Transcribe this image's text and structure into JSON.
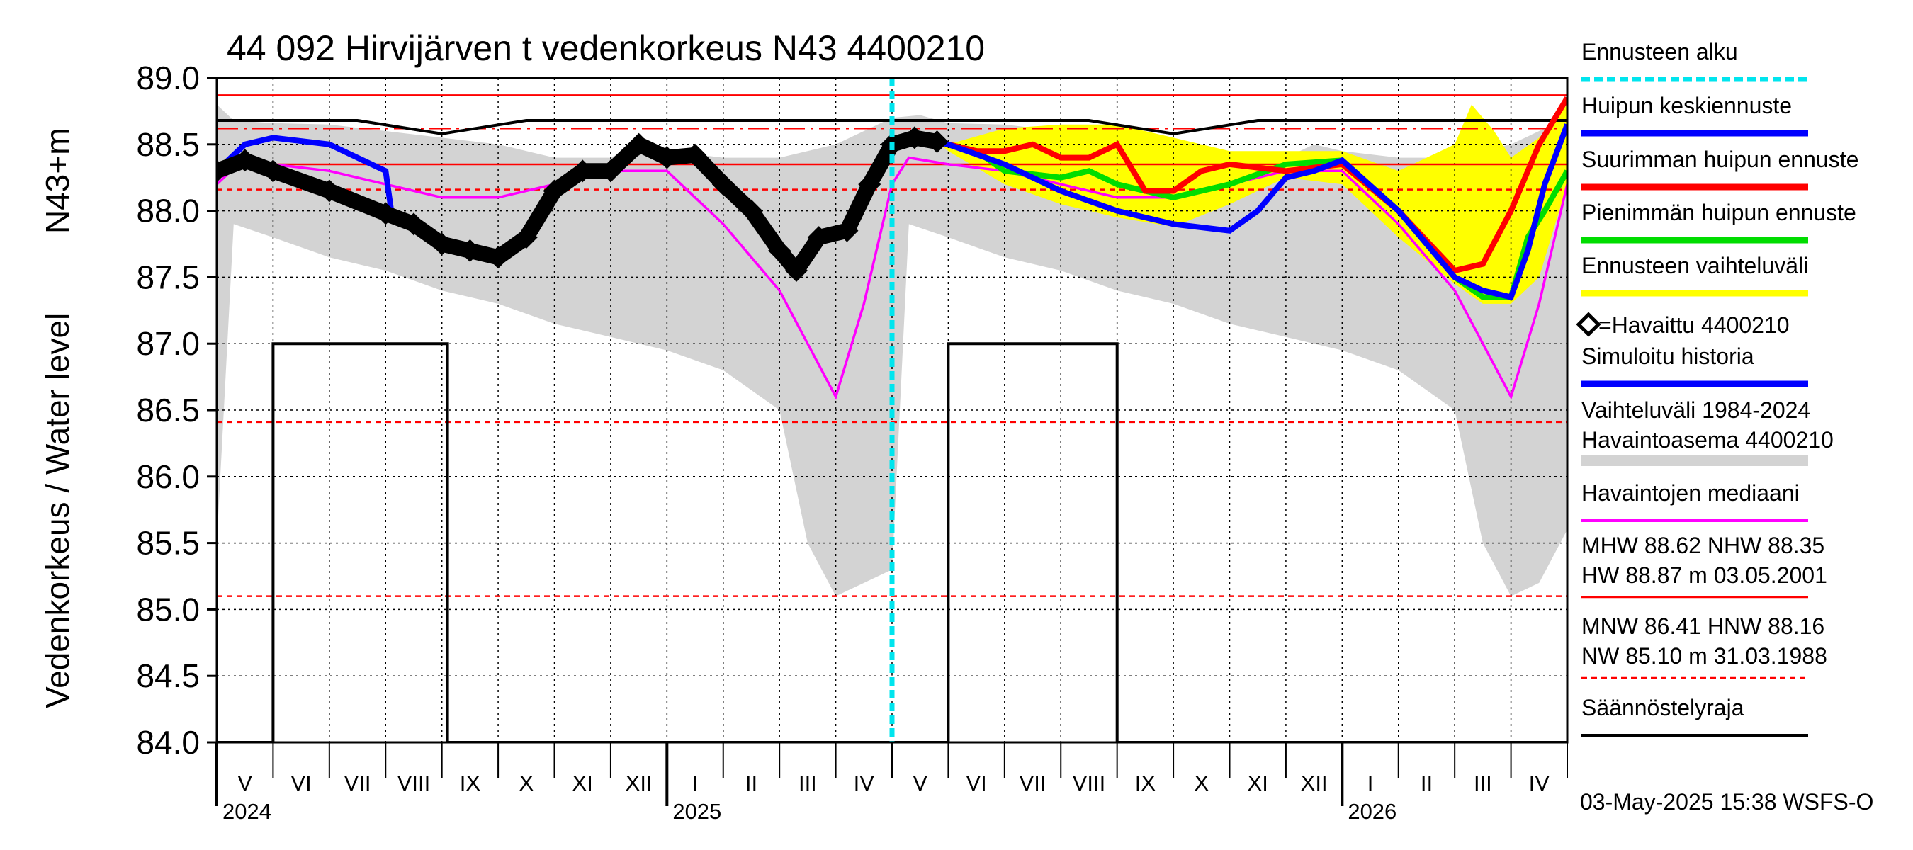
{
  "chart_data": {
    "type": "line",
    "title": "44 092 Hirvijärven t vedenkorkeus N43 4400210",
    "ylabel_outer": "Vedenkorkeus / Water level",
    "ylabel_inner": "N43+m",
    "ylim": [
      84.0,
      89.0
    ],
    "yticks": [
      "84.0",
      "84.5",
      "85.0",
      "85.5",
      "86.0",
      "86.5",
      "87.0",
      "87.5",
      "88.0",
      "88.5",
      "89.0"
    ],
    "months": [
      "V",
      "VI",
      "VII",
      "VIII",
      "IX",
      "X",
      "XI",
      "XII",
      "I",
      "II",
      "III",
      "IV",
      "V",
      "VI",
      "VII",
      "VIII",
      "IX",
      "X",
      "XI",
      "XII",
      "I",
      "II",
      "III",
      "IV"
    ],
    "years": [
      {
        "label": "2024",
        "month_index": 0
      },
      {
        "label": "2025",
        "month_index": 8
      },
      {
        "label": "2026",
        "month_index": 20
      }
    ],
    "forecast_start_month": 12.0,
    "reference_levels": {
      "HW": 88.87,
      "MHW": 88.62,
      "NHW": 88.35,
      "HNW": 88.16,
      "MNW": 86.41,
      "NW": 85.1
    },
    "regulation_limit_upper": [
      [
        0,
        88.68
      ],
      [
        2.5,
        88.68
      ],
      [
        4,
        88.58
      ],
      [
        5.5,
        88.68
      ],
      [
        12,
        88.68
      ],
      [
        15.5,
        88.68
      ],
      [
        17,
        88.58
      ],
      [
        18.5,
        88.68
      ],
      [
        24,
        88.68
      ]
    ],
    "regulation_limit_lower": [
      [
        0,
        84.0
      ],
      [
        1,
        84.0
      ],
      [
        1,
        87.0
      ],
      [
        4.1,
        87.0
      ],
      [
        4.1,
        84.0
      ],
      [
        13,
        84.0
      ],
      [
        13,
        87.0
      ],
      [
        16,
        87.0
      ],
      [
        16,
        84.0
      ],
      [
        24,
        84.0
      ]
    ],
    "variation_range_1984_2024_upper": [
      [
        0,
        88.8
      ],
      [
        0.3,
        88.68
      ],
      [
        1,
        88.66
      ],
      [
        2,
        88.65
      ],
      [
        3,
        88.6
      ],
      [
        4,
        88.55
      ],
      [
        5,
        88.5
      ],
      [
        6,
        88.4
      ],
      [
        7,
        88.4
      ],
      [
        7.5,
        88.5
      ],
      [
        8,
        88.45
      ],
      [
        9,
        88.4
      ],
      [
        10,
        88.4
      ],
      [
        11,
        88.5
      ],
      [
        11.5,
        88.6
      ],
      [
        12,
        88.7
      ],
      [
        12.5,
        88.72
      ],
      [
        13,
        88.66
      ],
      [
        14,
        88.65
      ],
      [
        15,
        88.6
      ],
      [
        16,
        88.55
      ],
      [
        17,
        88.5
      ],
      [
        18,
        88.4
      ],
      [
        19,
        88.4
      ],
      [
        19.5,
        88.5
      ],
      [
        20,
        88.45
      ],
      [
        21,
        88.4
      ],
      [
        22,
        88.4
      ],
      [
        23,
        88.5
      ],
      [
        23.5,
        88.6
      ],
      [
        24,
        88.7
      ]
    ],
    "variation_range_1984_2024_lower": [
      [
        0,
        85.5
      ],
      [
        0.3,
        87.9
      ],
      [
        1,
        87.8
      ],
      [
        2,
        87.65
      ],
      [
        3,
        87.55
      ],
      [
        4,
        87.4
      ],
      [
        5,
        87.3
      ],
      [
        6,
        87.15
      ],
      [
        7,
        87.05
      ],
      [
        8,
        86.95
      ],
      [
        9,
        86.8
      ],
      [
        10,
        86.5
      ],
      [
        10.5,
        85.5
      ],
      [
        11,
        85.1
      ],
      [
        11.5,
        85.2
      ],
      [
        12,
        85.3
      ],
      [
        12.3,
        87.9
      ],
      [
        13,
        87.8
      ],
      [
        14,
        87.65
      ],
      [
        15,
        87.55
      ],
      [
        16,
        87.4
      ],
      [
        17,
        87.3
      ],
      [
        18,
        87.15
      ],
      [
        19,
        87.05
      ],
      [
        20,
        86.95
      ],
      [
        21,
        86.8
      ],
      [
        22,
        86.5
      ],
      [
        22.5,
        85.5
      ],
      [
        23,
        85.1
      ],
      [
        23.5,
        85.2
      ],
      [
        24,
        85.6
      ]
    ],
    "observed_median": [
      [
        0,
        88.2
      ],
      [
        0.5,
        88.4
      ],
      [
        1,
        88.35
      ],
      [
        2,
        88.3
      ],
      [
        3,
        88.2
      ],
      [
        4,
        88.1
      ],
      [
        5,
        88.1
      ],
      [
        6,
        88.2
      ],
      [
        7,
        88.3
      ],
      [
        8,
        88.3
      ],
      [
        9,
        87.9
      ],
      [
        10,
        87.4
      ],
      [
        10.5,
        87.0
      ],
      [
        11,
        86.6
      ],
      [
        11.5,
        87.3
      ],
      [
        12,
        88.2
      ],
      [
        12.3,
        88.4
      ],
      [
        13,
        88.35
      ],
      [
        14,
        88.3
      ],
      [
        15,
        88.2
      ],
      [
        16,
        88.1
      ],
      [
        17,
        88.1
      ],
      [
        18,
        88.2
      ],
      [
        19,
        88.3
      ],
      [
        20,
        88.3
      ],
      [
        21,
        87.9
      ],
      [
        22,
        87.4
      ],
      [
        22.5,
        87.0
      ],
      [
        23,
        86.6
      ],
      [
        23.5,
        87.3
      ],
      [
        24,
        88.2
      ]
    ],
    "simulated_history": [
      [
        0,
        88.3
      ],
      [
        0.5,
        88.5
      ],
      [
        1,
        88.55
      ],
      [
        2,
        88.5
      ],
      [
        3,
        88.3
      ],
      [
        3.1,
        88.0
      ]
    ],
    "observed_4400210": [
      [
        0,
        88.3
      ],
      [
        0.5,
        88.38
      ],
      [
        1,
        88.3
      ],
      [
        2,
        88.15
      ],
      [
        3,
        87.98
      ],
      [
        3.5,
        87.9
      ],
      [
        4,
        87.75
      ],
      [
        4.5,
        87.7
      ],
      [
        5,
        87.65
      ],
      [
        5.5,
        87.8
      ],
      [
        6,
        88.15
      ],
      [
        6.5,
        88.3
      ],
      [
        7,
        88.3
      ],
      [
        7.5,
        88.5
      ],
      [
        8,
        88.4
      ],
      [
        8.5,
        88.42
      ],
      [
        9,
        88.2
      ],
      [
        9.5,
        88.0
      ],
      [
        10,
        87.7
      ],
      [
        10.3,
        87.55
      ],
      [
        10.7,
        87.8
      ],
      [
        11.2,
        87.85
      ],
      [
        11.6,
        88.2
      ],
      [
        12,
        88.5
      ],
      [
        12.4,
        88.55
      ],
      [
        12.8,
        88.52
      ]
    ],
    "forecast_variation_upper": [
      [
        12.8,
        88.52
      ],
      [
        13,
        88.5
      ],
      [
        14,
        88.62
      ],
      [
        15,
        88.65
      ],
      [
        16,
        88.65
      ],
      [
        17,
        88.55
      ],
      [
        18,
        88.45
      ],
      [
        19,
        88.45
      ],
      [
        20,
        88.45
      ],
      [
        21,
        88.3
      ],
      [
        22,
        88.5
      ],
      [
        22.3,
        88.8
      ],
      [
        22.7,
        88.6
      ],
      [
        23,
        88.4
      ],
      [
        23.5,
        88.55
      ],
      [
        24,
        88.8
      ]
    ],
    "forecast_variation_lower": [
      [
        12.8,
        88.52
      ],
      [
        13,
        88.45
      ],
      [
        14,
        88.2
      ],
      [
        15,
        88.05
      ],
      [
        16,
        87.95
      ],
      [
        17,
        87.88
      ],
      [
        18,
        88.05
      ],
      [
        19,
        88.25
      ],
      [
        20,
        88.2
      ],
      [
        21,
        87.8
      ],
      [
        22,
        87.45
      ],
      [
        22.5,
        87.3
      ],
      [
        23,
        87.3
      ],
      [
        23.5,
        87.5
      ],
      [
        24,
        88.2
      ]
    ],
    "forecast_mean": [
      [
        12.8,
        88.52
      ],
      [
        13,
        88.5
      ],
      [
        14,
        88.35
      ],
      [
        15,
        88.15
      ],
      [
        16,
        88.0
      ],
      [
        17,
        87.9
      ],
      [
        18,
        87.85
      ],
      [
        18.5,
        88.0
      ],
      [
        19,
        88.25
      ],
      [
        19.5,
        88.3
      ],
      [
        20,
        88.38
      ],
      [
        21,
        88.0
      ],
      [
        22,
        87.5
      ],
      [
        22.5,
        87.4
      ],
      [
        23,
        87.35
      ],
      [
        23.3,
        87.7
      ],
      [
        23.6,
        88.2
      ],
      [
        24,
        88.65
      ]
    ],
    "forecast_max_peak": [
      [
        12.8,
        88.52
      ],
      [
        13.5,
        88.45
      ],
      [
        14,
        88.45
      ],
      [
        14.5,
        88.5
      ],
      [
        15,
        88.4
      ],
      [
        15.5,
        88.4
      ],
      [
        16,
        88.5
      ],
      [
        16.5,
        88.15
      ],
      [
        17,
        88.15
      ],
      [
        17.5,
        88.3
      ],
      [
        18,
        88.35
      ],
      [
        19,
        88.3
      ],
      [
        20,
        88.35
      ],
      [
        21,
        88.0
      ],
      [
        22,
        87.55
      ],
      [
        22.5,
        87.6
      ],
      [
        23,
        88.0
      ],
      [
        23.5,
        88.5
      ],
      [
        24,
        88.85
      ]
    ],
    "forecast_min_peak": [
      [
        12.8,
        88.52
      ],
      [
        13.5,
        88.45
      ],
      [
        14,
        88.3
      ],
      [
        15,
        88.25
      ],
      [
        15.5,
        88.3
      ],
      [
        16,
        88.2
      ],
      [
        16.5,
        88.15
      ],
      [
        17,
        88.1
      ],
      [
        18,
        88.2
      ],
      [
        19,
        88.35
      ],
      [
        20,
        88.38
      ],
      [
        21,
        88.0
      ],
      [
        22,
        87.5
      ],
      [
        22.5,
        87.35
      ],
      [
        23,
        87.35
      ],
      [
        23.3,
        87.8
      ],
      [
        23.6,
        88.0
      ],
      [
        24,
        88.3
      ]
    ]
  },
  "legend": {
    "forecast_start": "Ennusteen alku",
    "mean_forecast": "Huipun keskiennuste",
    "max_forecast": "Suurimman huipun ennuste",
    "min_forecast": "Pienimmän huipun ennuste",
    "forecast_range": "Ennusteen vaihteluväli",
    "observed": "=Havaittu 4400210",
    "simulated": "Simuloitu historia",
    "range_line1": "Vaihteluväli 1984-2024",
    "range_line2": " Havaintoasema 4400210",
    "median": "Havaintojen mediaani",
    "stats1": "MHW  88.62 NHW  88.35",
    "stats2": "HW  88.87 m 03.05.2001",
    "stats3": "MNW  86.41 HNW  88.16",
    "stats4": "NW  85.10 m 31.03.1988",
    "regulation": "Säännöstelyraja"
  },
  "footer": "03-May-2025 15:38 WSFS-O",
  "colors": {
    "forecast_start": "#00e5ee",
    "mean": "#0000ff",
    "max": "#ff0000",
    "min": "#00dd00",
    "range": "#ffff00",
    "observed": "#000000",
    "simulated": "#0000ff",
    "variation": "#d3d3d3",
    "median": "#ff00ff",
    "hw": "#ff0000",
    "nw_dashed": "#ff0000",
    "regulation": "#000000"
  }
}
